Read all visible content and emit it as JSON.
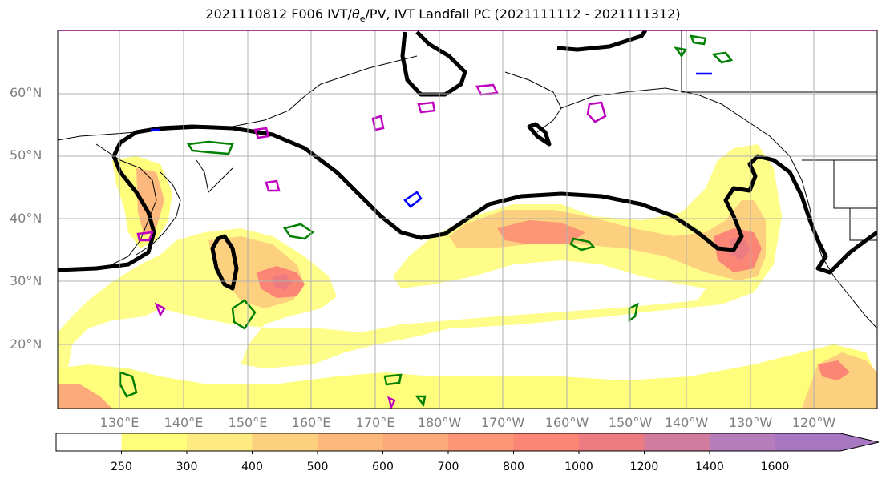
{
  "title": {
    "prefix": "2021110812 F006 IVT/",
    "theta": "θ",
    "theta_sub": "e",
    "suffix": "/PV, IVT Landfall PC (2021111112 - 2021111312)"
  },
  "lat_labels": [
    "60°N",
    "50°N",
    "40°N",
    "30°N",
    "20°N"
  ],
  "lon_labels": [
    "130°E",
    "140°E",
    "150°E",
    "160°E",
    "170°E",
    "180°W",
    "170°W",
    "160°W",
    "150°W",
    "140°W",
    "130°W",
    "120°W"
  ],
  "colorbar": {
    "ticks": [
      "250",
      "300",
      "400",
      "500",
      "600",
      "700",
      "800",
      "1000",
      "1200",
      "1400",
      "1600"
    ],
    "colors": [
      "#ffffff",
      "#fefd7c",
      "#fdeb82",
      "#fdd07f",
      "#fdb97d",
      "#fdaa7b",
      "#fd9676",
      "#fb8676",
      "#ec7b82",
      "#d17b9e",
      "#b57dba",
      "#a877c2"
    ]
  },
  "legend_colors": {
    "ivt_contour": "#000000",
    "theta_e": "#008000",
    "pv": "#c000c0",
    "other": "#0000ff"
  }
}
